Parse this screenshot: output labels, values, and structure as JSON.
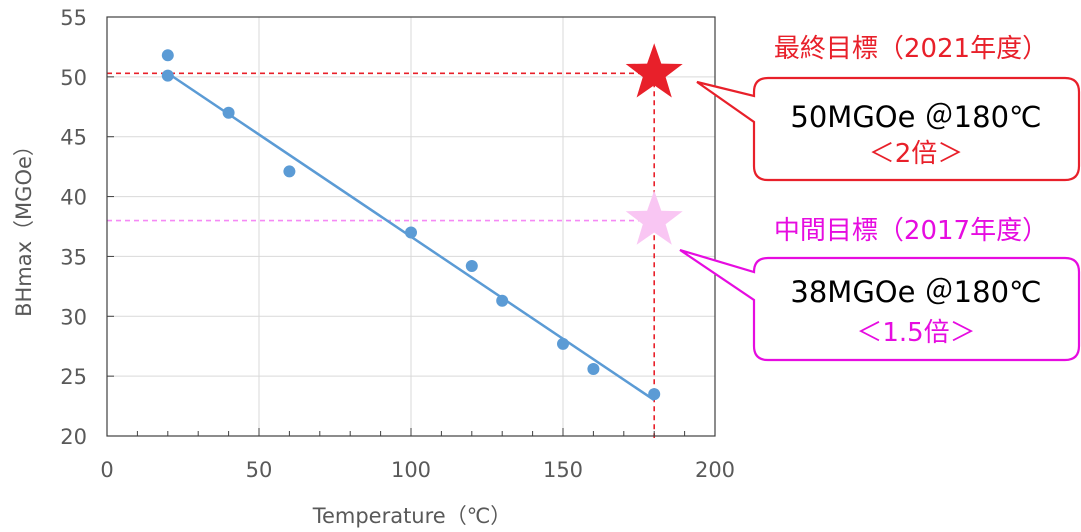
{
  "chart_data": {
    "type": "scatter",
    "title": "",
    "xlabel": "Temperature（℃）",
    "ylabel": "BHmax（MGOe）",
    "xlim": [
      0,
      200
    ],
    "ylim": [
      20,
      55
    ],
    "x_ticks": [
      0,
      50,
      100,
      150,
      200
    ],
    "y_ticks": [
      20,
      25,
      30,
      35,
      40,
      45,
      50,
      55
    ],
    "grid": true,
    "series": [
      {
        "x": [
          20,
          20,
          40,
          60,
          100,
          120,
          130,
          150,
          160,
          180
        ],
        "y": [
          51.8,
          50.1,
          47.0,
          42.1,
          37.0,
          34.2,
          31.3,
          27.7,
          25.6,
          23.5
        ]
      }
    ],
    "trendline": {
      "x": [
        20,
        180
      ],
      "y": [
        50.3,
        23.0
      ]
    },
    "reference_lines": [
      {
        "axis": "y",
        "value": 50.3,
        "color": "#e8202a"
      },
      {
        "axis": "y",
        "value": 38.0,
        "color": "#f589f5"
      },
      {
        "axis": "x",
        "value": 180,
        "color": "#e8202a"
      }
    ],
    "targets": [
      {
        "x": 180,
        "y": 50.3,
        "color": "#e8202a",
        "title": "最終目標（2021年度）",
        "line1": "50MGOe ＠180℃",
        "line2": "＜2倍＞",
        "line2_color": "#e8202a"
      },
      {
        "x": 180,
        "y": 38.0,
        "color": "#f9c6f3",
        "title": "中間目標（2017年度）",
        "line1": "38MGOe ＠180℃",
        "line2": "＜1.5倍＞",
        "line2_color": "#e60ce0"
      }
    ],
    "colors": {
      "points": "#5b9bd5",
      "trendline": "#5b9bd5",
      "final_goal": "#e8202a",
      "interim_goal": "#e60ce0",
      "interim_star": "#f9c6f3"
    }
  }
}
